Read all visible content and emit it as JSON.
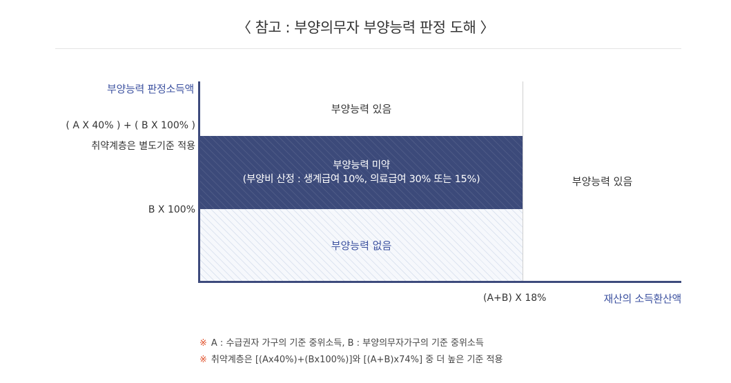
{
  "title": "〈 참고 : 부양의무자 부양능력 판정 도해 〉",
  "y_axis": {
    "title": "부양능력 판정소득액",
    "label_upper_line1": "( A X 40% ) + ( B X 100% )",
    "label_upper_line2": "취약계층은 별도기준 적용",
    "label_lower": "B X 100%"
  },
  "x_axis": {
    "title": "재산의 소득환산액",
    "label_threshold": "(A+B) X 18%"
  },
  "zones": {
    "top": "부양능력 있음",
    "middle_line1": "부양능력 미약",
    "middle_line2": "(부양비 산정 : 생계급여 10%, 의료급여 30% 또는 15%)",
    "bottom": "부양능력 없음",
    "right": "부양능력 있음"
  },
  "notes": [
    {
      "mark": "※",
      "text": "A : 수급권자 가구의 기준 중위소득, B : 부양의무자가구의 기준 중위소득"
    },
    {
      "mark": "※",
      "text": "취약계층은 [(Ax40%)+(Bx100%)]와 [(A+B)x74%] 중 더 높은 기준 적용"
    }
  ],
  "colors": {
    "axis": "#3d4a7c",
    "middle_zone": "#3c4a7a",
    "accent_text": "#3d52a0",
    "note_mark": "#e0502a"
  }
}
